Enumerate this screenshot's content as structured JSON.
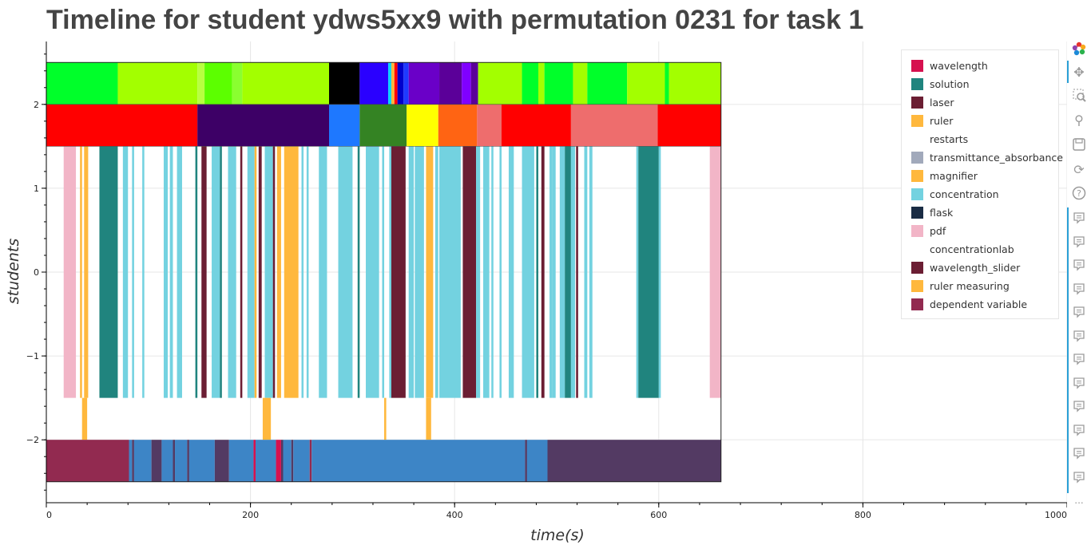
{
  "chart_data": {
    "type": "timeline",
    "title": "Timeline for student ydws5xx9 with permutation 0231 for task 1",
    "xlabel": "time(s)",
    "ylabel": "students",
    "xlim": [
      0,
      1000
    ],
    "ylim": [
      -2.75,
      2.75
    ],
    "xticks": [
      0,
      200,
      400,
      600,
      800,
      1000
    ],
    "yticks": [
      -2,
      -1,
      0,
      1,
      2
    ],
    "ytick_labels": [
      "−2",
      "−1",
      "0",
      "1",
      "2"
    ],
    "grid": true,
    "legend_position": "top-right",
    "colors": {
      "wavelength": "#d6114f",
      "solution": "#20847e",
      "laser": "#6b1e33",
      "ruler": "#ffb83d",
      "restarts": "#ffffff",
      "transmittance_absorbance": "#a1a9bb",
      "magnifier": "#ffb83d",
      "concentration": "#73d2e0",
      "flask": "#1a2c44",
      "pdf": "#f2b5c7",
      "concentrationlab": "#ffffff",
      "wavelength_slider": "#6b1e33",
      "ruler_measuring": "#ffb83d",
      "dependent_variable": "#922a50",
      "blue_state": "#3d85c6",
      "dark_state": "#533a63"
    },
    "legend": [
      {
        "label": "wavelength",
        "color": "#d6114f"
      },
      {
        "label": "solution",
        "color": "#20847e"
      },
      {
        "label": "laser",
        "color": "#6b1e33"
      },
      {
        "label": "ruler",
        "color": "#ffb83d"
      },
      {
        "label": "restarts",
        "color": "#ffffff"
      },
      {
        "label": "transmittance_absorbance",
        "color": "#a1a9bb"
      },
      {
        "label": "magnifier",
        "color": "#ffb83d"
      },
      {
        "label": "concentration",
        "color": "#73d2e0"
      },
      {
        "label": "flask",
        "color": "#1a2c44"
      },
      {
        "label": "pdf",
        "color": "#f2b5c7"
      },
      {
        "label": "concentrationlab",
        "color": "#ffffff"
      },
      {
        "label": "wavelength_slider",
        "color": "#6b1e33"
      },
      {
        "label": "ruler measuring",
        "color": "#ffb83d"
      },
      {
        "label": "dependent variable",
        "color": "#922a50"
      }
    ],
    "rows": [
      {
        "y_top": 2.5,
        "y_bottom": 2.0,
        "segments": [
          {
            "start": 0,
            "end": 70,
            "color": "#00ff2a"
          },
          {
            "start": 70,
            "end": 148,
            "color": "#a3ff00"
          },
          {
            "start": 148,
            "end": 155,
            "color": "#b8ff40"
          },
          {
            "start": 155,
            "end": 182,
            "color": "#5cff00"
          },
          {
            "start": 182,
            "end": 192,
            "color": "#8aff30"
          },
          {
            "start": 192,
            "end": 277,
            "color": "#a3ff00"
          },
          {
            "start": 277,
            "end": 307,
            "color": "#000000"
          },
          {
            "start": 307,
            "end": 335,
            "color": "#2a00ff"
          },
          {
            "start": 335,
            "end": 338,
            "color": "#00d5ff"
          },
          {
            "start": 338,
            "end": 341,
            "color": "#ffb83d"
          },
          {
            "start": 341,
            "end": 344,
            "color": "#ff0000"
          },
          {
            "start": 344,
            "end": 350,
            "color": "#0000cc"
          },
          {
            "start": 350,
            "end": 355,
            "color": "#1e3aff"
          },
          {
            "start": 355,
            "end": 385,
            "color": "#6a00c8"
          },
          {
            "start": 385,
            "end": 407,
            "color": "#5b0099"
          },
          {
            "start": 407,
            "end": 416,
            "color": "#8000ff"
          },
          {
            "start": 416,
            "end": 423,
            "color": "#5b0099"
          },
          {
            "start": 423,
            "end": 466,
            "color": "#a3ff00"
          },
          {
            "start": 466,
            "end": 482,
            "color": "#00ff2a"
          },
          {
            "start": 482,
            "end": 488,
            "color": "#a3ff00"
          },
          {
            "start": 488,
            "end": 516,
            "color": "#00ff2a"
          },
          {
            "start": 516,
            "end": 530,
            "color": "#a3ff00"
          },
          {
            "start": 530,
            "end": 569,
            "color": "#00ff2a"
          },
          {
            "start": 569,
            "end": 606,
            "color": "#a3ff00"
          },
          {
            "start": 606,
            "end": 610,
            "color": "#00ff2a"
          },
          {
            "start": 610,
            "end": 661,
            "color": "#a3ff00"
          }
        ]
      },
      {
        "y_top": 2.0,
        "y_bottom": 1.5,
        "segments": [
          {
            "start": 0,
            "end": 148,
            "color": "#ff0000"
          },
          {
            "start": 148,
            "end": 277,
            "color": "#3d0066"
          },
          {
            "start": 277,
            "end": 307,
            "color": "#1e78ff"
          },
          {
            "start": 307,
            "end": 353,
            "color": "#348323"
          },
          {
            "start": 353,
            "end": 384,
            "color": "#ffff00"
          },
          {
            "start": 384,
            "end": 422,
            "color": "#ff6413"
          },
          {
            "start": 422,
            "end": 446,
            "color": "#ee6d6d"
          },
          {
            "start": 446,
            "end": 514,
            "color": "#ff0000"
          },
          {
            "start": 514,
            "end": 599,
            "color": "#ee6d6d"
          },
          {
            "start": 599,
            "end": 661,
            "color": "#ff0000"
          }
        ]
      },
      {
        "y_top": 1.5,
        "y_bottom": -1.5,
        "segments": [
          {
            "start": 17,
            "end": 29,
            "color": "#f2b5c7"
          },
          {
            "start": 33,
            "end": 35,
            "color": "#ffb83d"
          },
          {
            "start": 37,
            "end": 41,
            "color": "#ffb83d"
          },
          {
            "start": 52,
            "end": 70,
            "color": "#20847e"
          },
          {
            "start": 75,
            "end": 80,
            "color": "#73d2e0"
          },
          {
            "start": 84,
            "end": 86,
            "color": "#73d2e0"
          },
          {
            "start": 94,
            "end": 96,
            "color": "#73d2e0"
          },
          {
            "start": 115,
            "end": 119,
            "color": "#73d2e0"
          },
          {
            "start": 121,
            "end": 124,
            "color": "#73d2e0"
          },
          {
            "start": 128,
            "end": 133,
            "color": "#73d2e0"
          },
          {
            "start": 146,
            "end": 148,
            "color": "#20847e"
          },
          {
            "start": 152,
            "end": 157,
            "color": "#6b1e33"
          },
          {
            "start": 162,
            "end": 170,
            "color": "#73d2e0"
          },
          {
            "start": 170,
            "end": 172,
            "color": "#20847e"
          },
          {
            "start": 178,
            "end": 186,
            "color": "#73d2e0"
          },
          {
            "start": 190,
            "end": 192,
            "color": "#6b1e33"
          },
          {
            "start": 197,
            "end": 204,
            "color": "#73d2e0"
          },
          {
            "start": 204,
            "end": 206,
            "color": "#ffb83d"
          },
          {
            "start": 208,
            "end": 211,
            "color": "#6b1e33"
          },
          {
            "start": 214,
            "end": 222,
            "color": "#73d2e0"
          },
          {
            "start": 222,
            "end": 224,
            "color": "#6b1e33"
          },
          {
            "start": 226,
            "end": 230,
            "color": "#ffb83d"
          },
          {
            "start": 233,
            "end": 247,
            "color": "#ffb83d"
          },
          {
            "start": 250,
            "end": 252,
            "color": "#73d2e0"
          },
          {
            "start": 255,
            "end": 257,
            "color": "#73d2e0"
          },
          {
            "start": 267,
            "end": 275,
            "color": "#73d2e0"
          },
          {
            "start": 286,
            "end": 300,
            "color": "#73d2e0"
          },
          {
            "start": 305,
            "end": 307,
            "color": "#20847e"
          },
          {
            "start": 313,
            "end": 326,
            "color": "#73d2e0"
          },
          {
            "start": 329,
            "end": 331,
            "color": "#73d2e0"
          },
          {
            "start": 336,
            "end": 338,
            "color": "#73d2e0"
          },
          {
            "start": 338,
            "end": 352,
            "color": "#6b1e33"
          },
          {
            "start": 355,
            "end": 360,
            "color": "#73d2e0"
          },
          {
            "start": 361,
            "end": 370,
            "color": "#73d2e0"
          },
          {
            "start": 372,
            "end": 379,
            "color": "#ffb83d"
          },
          {
            "start": 381,
            "end": 384,
            "color": "#73d2e0"
          },
          {
            "start": 385,
            "end": 406,
            "color": "#73d2e0"
          },
          {
            "start": 408,
            "end": 421,
            "color": "#6b1e33"
          },
          {
            "start": 421,
            "end": 425,
            "color": "#73d2e0"
          },
          {
            "start": 428,
            "end": 434,
            "color": "#73d2e0"
          },
          {
            "start": 436,
            "end": 438,
            "color": "#73d2e0"
          },
          {
            "start": 444,
            "end": 446,
            "color": "#73d2e0"
          },
          {
            "start": 453,
            "end": 458,
            "color": "#73d2e0"
          },
          {
            "start": 466,
            "end": 478,
            "color": "#73d2e0"
          },
          {
            "start": 480,
            "end": 482,
            "color": "#20847e"
          },
          {
            "start": 485,
            "end": 488,
            "color": "#6b1e33"
          },
          {
            "start": 493,
            "end": 496,
            "color": "#73d2e0"
          },
          {
            "start": 496,
            "end": 499,
            "color": "#73d2e0"
          },
          {
            "start": 503,
            "end": 508,
            "color": "#73d2e0"
          },
          {
            "start": 508,
            "end": 514,
            "color": "#20847e"
          },
          {
            "start": 514,
            "end": 518,
            "color": "#73d2e0"
          },
          {
            "start": 519,
            "end": 521,
            "color": "#6b1e33"
          },
          {
            "start": 527,
            "end": 530,
            "color": "#73d2e0"
          },
          {
            "start": 532,
            "end": 535,
            "color": "#73d2e0"
          },
          {
            "start": 578,
            "end": 580,
            "color": "#73d2e0"
          },
          {
            "start": 580,
            "end": 600,
            "color": "#20847e"
          },
          {
            "start": 600,
            "end": 602,
            "color": "#73d2e0"
          },
          {
            "start": 650,
            "end": 661,
            "color": "#f2b5c7"
          }
        ]
      },
      {
        "y_top": -1.5,
        "y_bottom": -2.0,
        "segments": [
          {
            "start": 35,
            "end": 40,
            "color": "#ffb83d"
          },
          {
            "start": 212,
            "end": 220,
            "color": "#ffb83d"
          },
          {
            "start": 331,
            "end": 333,
            "color": "#ffb83d"
          },
          {
            "start": 372,
            "end": 377,
            "color": "#ffb83d"
          }
        ]
      },
      {
        "y_top": -2.0,
        "y_bottom": -2.5,
        "segments": [
          {
            "start": 0,
            "end": 81,
            "color": "#922a50"
          },
          {
            "start": 81,
            "end": 84,
            "color": "#3d85c6"
          },
          {
            "start": 84,
            "end": 86,
            "color": "#533a63"
          },
          {
            "start": 86,
            "end": 103,
            "color": "#3d85c6"
          },
          {
            "start": 103,
            "end": 113,
            "color": "#533a63"
          },
          {
            "start": 113,
            "end": 124,
            "color": "#3d85c6"
          },
          {
            "start": 124,
            "end": 126,
            "color": "#533a63"
          },
          {
            "start": 126,
            "end": 138,
            "color": "#3d85c6"
          },
          {
            "start": 138,
            "end": 140,
            "color": "#533a63"
          },
          {
            "start": 140,
            "end": 165,
            "color": "#3d85c6"
          },
          {
            "start": 165,
            "end": 179,
            "color": "#533a63"
          },
          {
            "start": 179,
            "end": 203,
            "color": "#3d85c6"
          },
          {
            "start": 203,
            "end": 205,
            "color": "#d6114f"
          },
          {
            "start": 205,
            "end": 225,
            "color": "#3d85c6"
          },
          {
            "start": 225,
            "end": 230,
            "color": "#d6114f"
          },
          {
            "start": 230,
            "end": 232,
            "color": "#533a63"
          },
          {
            "start": 232,
            "end": 240,
            "color": "#3d85c6"
          },
          {
            "start": 240,
            "end": 242,
            "color": "#533a63"
          },
          {
            "start": 242,
            "end": 258,
            "color": "#3d85c6"
          },
          {
            "start": 258,
            "end": 260,
            "color": "#922a50"
          },
          {
            "start": 260,
            "end": 469,
            "color": "#3d85c6"
          },
          {
            "start": 469,
            "end": 471,
            "color": "#533a63"
          },
          {
            "start": 471,
            "end": 491,
            "color": "#3d85c6"
          },
          {
            "start": 491,
            "end": 661,
            "color": "#533a63"
          }
        ]
      }
    ]
  },
  "toolbar": {
    "icons": [
      "bokeh-logo-icon",
      "pan-icon",
      "box-zoom-icon",
      "wheel-zoom-icon",
      "save-icon",
      "reset-icon",
      "help-icon",
      "hover-icon"
    ],
    "more_label": "..."
  }
}
